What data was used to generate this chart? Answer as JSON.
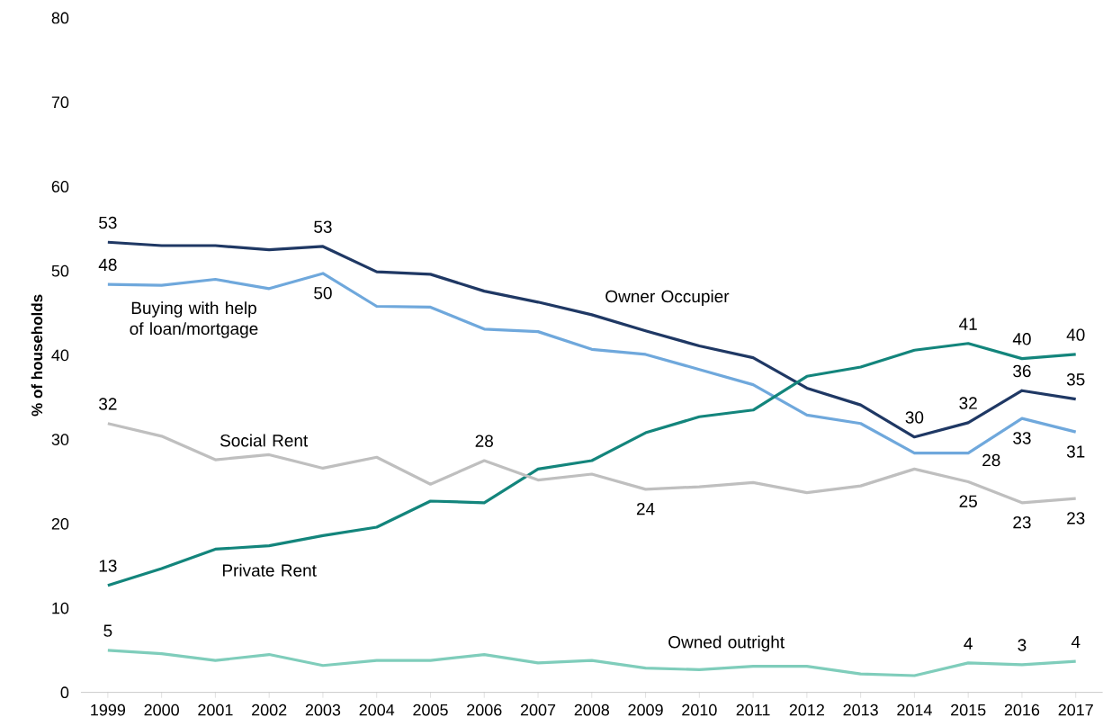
{
  "chart_data": {
    "type": "line",
    "ylabel": "% of households",
    "categories": [
      "1999",
      "2000",
      "2001",
      "2002",
      "2003",
      "2004",
      "2005",
      "2006",
      "2007",
      "2008",
      "2009",
      "2010",
      "2011",
      "2012",
      "2013",
      "2014",
      "2015",
      "2016",
      "2017"
    ],
    "ylim": [
      0,
      80
    ],
    "yticks": [
      0,
      10,
      20,
      30,
      40,
      50,
      60,
      70,
      80
    ],
    "marker": "none",
    "line_style": "solid",
    "series": [
      {
        "name": "Owner Occupier",
        "color": "#1f3864",
        "values": [
          53.4,
          53.0,
          53.0,
          52.5,
          52.9,
          49.9,
          49.6,
          47.6,
          46.3,
          44.8,
          42.9,
          41.1,
          39.7,
          36.1,
          34.1,
          30.3,
          32.0,
          35.8,
          34.8
        ],
        "value_labels": [
          "53",
          null,
          null,
          null,
          "53",
          null,
          null,
          null,
          null,
          null,
          null,
          null,
          null,
          null,
          null,
          "30",
          "32",
          "36",
          "35"
        ]
      },
      {
        "name": "Buying with help of loan/mortgage",
        "color": "#6fa8dc",
        "values": [
          48.4,
          48.3,
          49.0,
          47.9,
          49.7,
          45.8,
          45.7,
          43.1,
          42.8,
          40.7,
          40.1,
          38.3,
          36.5,
          32.9,
          31.9,
          28.4,
          28.4,
          32.5,
          30.9
        ],
        "value_labels": [
          "48",
          null,
          null,
          null,
          "50",
          null,
          null,
          null,
          null,
          null,
          null,
          null,
          null,
          null,
          null,
          null,
          "28",
          "33",
          "31"
        ]
      },
      {
        "name": "Private Rent",
        "color": "#13857c",
        "values": [
          12.7,
          14.7,
          17.0,
          17.4,
          18.6,
          19.6,
          22.7,
          22.5,
          26.5,
          27.5,
          30.8,
          32.7,
          33.5,
          37.5,
          38.6,
          40.6,
          41.4,
          39.6,
          40.1
        ],
        "value_labels": [
          "13",
          null,
          null,
          null,
          null,
          null,
          null,
          null,
          null,
          null,
          null,
          null,
          null,
          null,
          null,
          null,
          "41",
          "40",
          "40"
        ]
      },
      {
        "name": "Social Rent",
        "color": "#bfbfbf",
        "values": [
          31.9,
          30.4,
          27.6,
          28.2,
          26.6,
          27.9,
          24.7,
          27.5,
          25.2,
          25.9,
          24.1,
          24.4,
          24.9,
          23.7,
          24.5,
          26.5,
          25.0,
          22.5,
          23.0
        ],
        "value_labels": [
          "32",
          null,
          null,
          null,
          null,
          null,
          null,
          "28",
          null,
          null,
          "24",
          null,
          null,
          null,
          null,
          null,
          "25",
          "23",
          "23"
        ]
      },
      {
        "name": "Owned outright",
        "color": "#7fcdbb",
        "values": [
          5.0,
          4.6,
          3.8,
          4.5,
          3.2,
          3.8,
          3.8,
          4.5,
          3.5,
          3.8,
          2.9,
          2.7,
          3.1,
          3.1,
          2.2,
          2.0,
          3.5,
          3.3,
          3.7
        ],
        "value_labels": [
          "5",
          null,
          null,
          null,
          null,
          null,
          null,
          null,
          null,
          null,
          null,
          null,
          null,
          null,
          null,
          null,
          "4",
          "3",
          "4"
        ]
      }
    ]
  }
}
